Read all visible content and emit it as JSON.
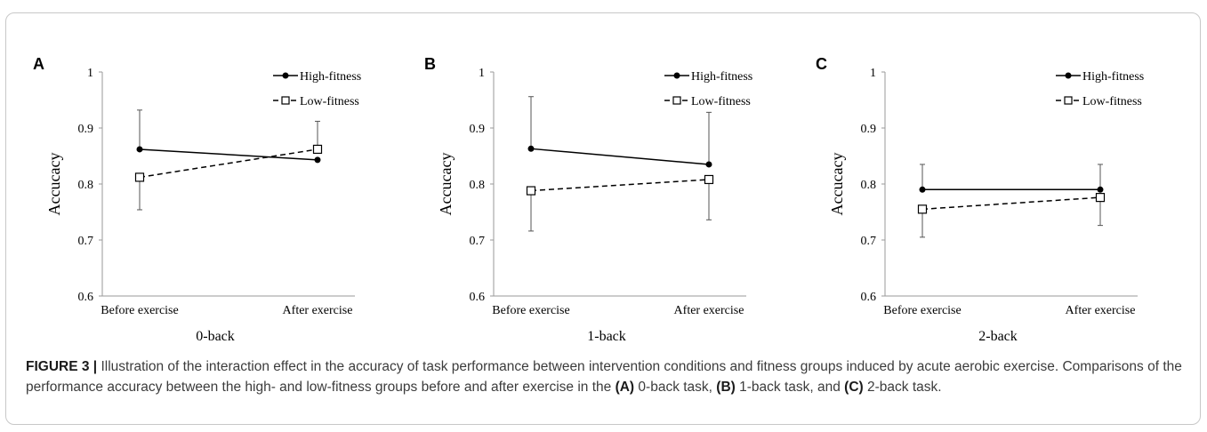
{
  "panels": [
    {
      "letter": "A"
    },
    {
      "letter": "B"
    },
    {
      "letter": "C"
    }
  ],
  "chart_data": [
    {
      "type": "line",
      "categories": [
        "Before exercise",
        "After exercise"
      ],
      "xlabel": "0-back",
      "ylabel": "Accucacy",
      "ylim": [
        0.6,
        1
      ],
      "yticks": [
        "0.6",
        "0.7",
        "0.8",
        "0.9",
        "1"
      ],
      "grid": false,
      "legend_position": "top-right",
      "series": [
        {
          "name": "High-fitness",
          "values": [
            0.862,
            0.843
          ],
          "error": [
            0.07,
            0.0
          ],
          "marker": "filled-circle",
          "style": "solid"
        },
        {
          "name": "Low-fitness",
          "values": [
            0.812,
            0.862
          ],
          "error": [
            0.058,
            0.05
          ],
          "marker": "open-square",
          "style": "dashed"
        }
      ]
    },
    {
      "type": "line",
      "categories": [
        "Before exercise",
        "After exercise"
      ],
      "xlabel": "1-back",
      "ylabel": "Accucacy",
      "ylim": [
        0.6,
        1
      ],
      "yticks": [
        "0.6",
        "0.7",
        "0.8",
        "0.9",
        "1"
      ],
      "grid": false,
      "legend_position": "top-right",
      "series": [
        {
          "name": "High-fitness",
          "values": [
            0.863,
            0.835
          ],
          "error": [
            0.093,
            0.093
          ],
          "marker": "filled-circle",
          "style": "solid"
        },
        {
          "name": "Low-fitness",
          "values": [
            0.788,
            0.808
          ],
          "error": [
            0.072,
            0.072
          ],
          "marker": "open-square",
          "style": "dashed"
        }
      ]
    },
    {
      "type": "line",
      "categories": [
        "Before exercise",
        "After exercise"
      ],
      "xlabel": "2-back",
      "ylabel": "Accucacy",
      "ylim": [
        0.6,
        1
      ],
      "yticks": [
        "0.6",
        "0.7",
        "0.8",
        "0.9",
        "1"
      ],
      "grid": false,
      "legend_position": "top-right",
      "series": [
        {
          "name": "High-fitness",
          "values": [
            0.79,
            0.79
          ],
          "error": [
            0.045,
            0.045
          ],
          "marker": "filled-circle",
          "style": "solid"
        },
        {
          "name": "Low-fitness",
          "values": [
            0.755,
            0.776
          ],
          "error": [
            0.05,
            0.05
          ],
          "marker": "open-square",
          "style": "dashed"
        }
      ]
    }
  ],
  "caption": {
    "label": "FIGURE 3 |",
    "text1": " Illustration of the interaction effect in the accuracy of task performance between intervention conditions and fitness groups induced by acute aerobic exercise. Comparisons of the performance accuracy between the high- and low-fitness groups before and after exercise in the ",
    "a": "(A)",
    "text2": " 0-back task, ",
    "b": "(B)",
    "text3": " 1-back task, and ",
    "c": "(C)",
    "text4": " 2-back task."
  }
}
